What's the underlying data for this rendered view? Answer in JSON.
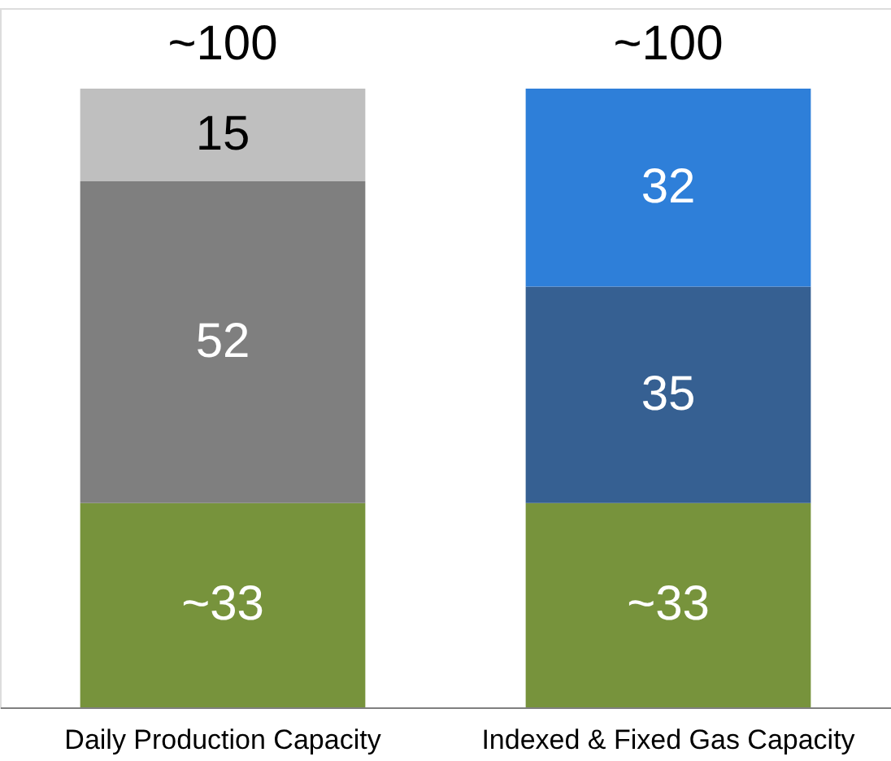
{
  "chart_data": {
    "type": "bar",
    "stacked": true,
    "categories": [
      "Daily Production Capacity",
      "Indexed & Fixed Gas Capacity"
    ],
    "series": [
      {
        "values": [
          33,
          33
        ],
        "colors": [
          "#77933c",
          "#77933c"
        ],
        "value_labels": [
          "~33",
          "~33"
        ]
      },
      {
        "values": [
          52,
          35
        ],
        "colors": [
          "#7f7f7f",
          "#366092"
        ],
        "value_labels": [
          "52",
          "35"
        ]
      },
      {
        "values": [
          15,
          32
        ],
        "colors": [
          "#bfbfbf",
          "#2e7fd9"
        ],
        "value_labels": [
          "15",
          "32"
        ]
      }
    ],
    "totals": [
      "~100",
      "~100"
    ]
  }
}
